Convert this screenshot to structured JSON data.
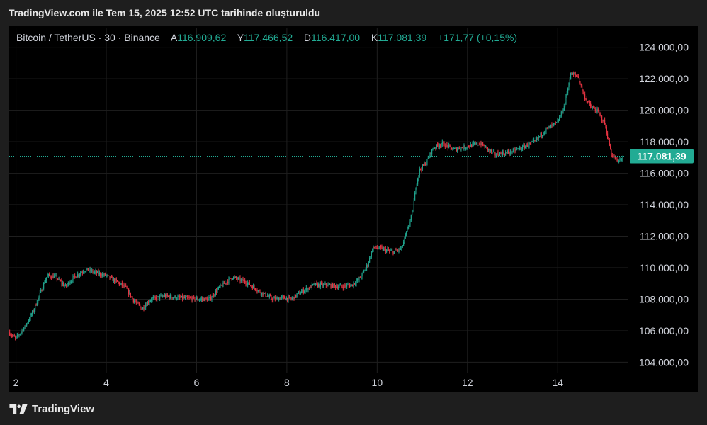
{
  "caption": "TradingView.com ile Tem 15, 2025 12:52 UTC tarihinde oluşturuldu",
  "legend": {
    "symbol": "Bitcoin / TetherUS · 30 · Binance",
    "open_label": "A",
    "open": "116.909,62",
    "high_label": "Y",
    "high": "117.466,52",
    "low_label": "D",
    "low": "116.417,00",
    "close_label": "K",
    "close": "117.081,39",
    "change": "+171,77 (+0,15%)"
  },
  "footer": {
    "brand": "TradingView"
  },
  "colors": {
    "up": "#22ab94",
    "down": "#f23645",
    "grid": "#1f1f1f",
    "axis_text": "#d1d4dc",
    "price_tag": "#22ab94"
  },
  "chart_data": {
    "type": "candlestick",
    "xlabel": "",
    "ylabel": "",
    "x_ticks": [
      "2",
      "4",
      "6",
      "8",
      "10",
      "12",
      "14"
    ],
    "x_tick_values": [
      2,
      4,
      6,
      8,
      10,
      12,
      14
    ],
    "xlim": [
      1.85,
      15.55
    ],
    "y_ticks": [
      "104.000,00",
      "106.000,00",
      "108.000,00",
      "110.000,00",
      "112.000,00",
      "114.000,00",
      "116.000,00",
      "118.000,00",
      "120.000,00",
      "122.000,00",
      "124.000,00"
    ],
    "y_tick_values": [
      104000,
      106000,
      108000,
      110000,
      112000,
      114000,
      116000,
      118000,
      120000,
      122000,
      124000
    ],
    "ylim": [
      103300,
      125200
    ],
    "last_price": 117081.39,
    "last_price_label": "117.081,39",
    "grid": true,
    "series_path": [
      [
        1.85,
        105900
      ],
      [
        2.0,
        105500
      ],
      [
        2.2,
        106200
      ],
      [
        2.4,
        107300
      ],
      [
        2.55,
        108400
      ],
      [
        2.7,
        109500
      ],
      [
        2.9,
        109400
      ],
      [
        3.1,
        108800
      ],
      [
        3.3,
        109400
      ],
      [
        3.55,
        109900
      ],
      [
        3.75,
        109700
      ],
      [
        4.0,
        109500
      ],
      [
        4.25,
        109100
      ],
      [
        4.45,
        108700
      ],
      [
        4.6,
        108000
      ],
      [
        4.8,
        107400
      ],
      [
        5.0,
        108000
      ],
      [
        5.3,
        108200
      ],
      [
        5.6,
        108100
      ],
      [
        6.0,
        108000
      ],
      [
        6.3,
        108000
      ],
      [
        6.5,
        108700
      ],
      [
        6.8,
        109400
      ],
      [
        7.1,
        109100
      ],
      [
        7.4,
        108500
      ],
      [
        7.7,
        108000
      ],
      [
        7.9,
        108100
      ],
      [
        8.1,
        108000
      ],
      [
        8.35,
        108500
      ],
      [
        8.6,
        108900
      ],
      [
        8.9,
        108900
      ],
      [
        9.2,
        108800
      ],
      [
        9.45,
        108900
      ],
      [
        9.65,
        109400
      ],
      [
        9.8,
        110200
      ],
      [
        9.92,
        111300
      ],
      [
        10.1,
        111200
      ],
      [
        10.35,
        111000
      ],
      [
        10.55,
        111200
      ],
      [
        10.7,
        112600
      ],
      [
        10.8,
        113600
      ],
      [
        10.87,
        115200
      ],
      [
        10.95,
        116200
      ],
      [
        11.1,
        116700
      ],
      [
        11.25,
        117600
      ],
      [
        11.45,
        117900
      ],
      [
        11.7,
        117500
      ],
      [
        12.0,
        117700
      ],
      [
        12.3,
        117900
      ],
      [
        12.6,
        117200
      ],
      [
        12.9,
        117300
      ],
      [
        13.2,
        117600
      ],
      [
        13.5,
        118000
      ],
      [
        13.75,
        118800
      ],
      [
        14.0,
        119200
      ],
      [
        14.15,
        120200
      ],
      [
        14.3,
        122300
      ],
      [
        14.45,
        122200
      ],
      [
        14.6,
        120900
      ],
      [
        14.75,
        120200
      ],
      [
        14.9,
        119900
      ],
      [
        15.05,
        119200
      ],
      [
        15.2,
        117200
      ],
      [
        15.35,
        116700
      ],
      [
        15.45,
        117050
      ]
    ]
  }
}
